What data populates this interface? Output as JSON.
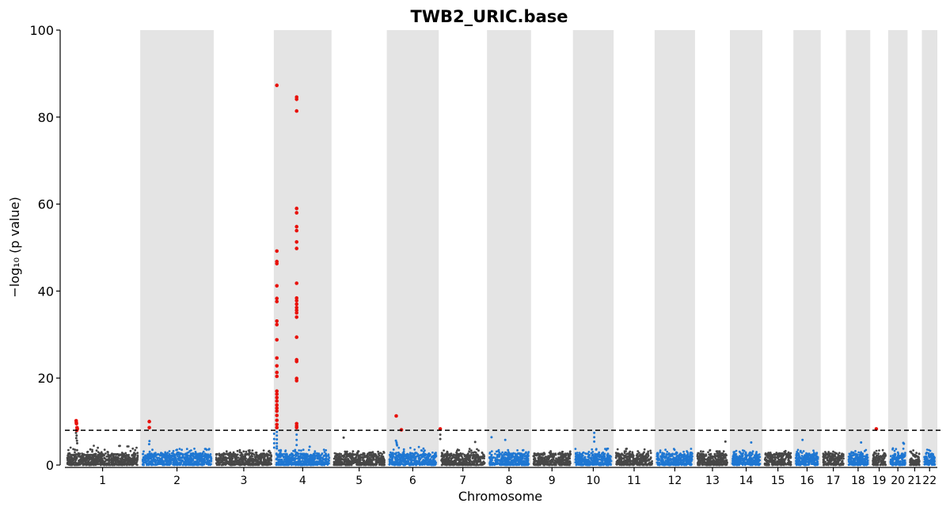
{
  "chart_data": {
    "type": "scatter",
    "title": "TWB2_URIC.base",
    "xlabel": "Chromosome",
    "ylabel": "−log₁₀ (p value)",
    "ylim": [
      0,
      100
    ],
    "yticks": [
      0,
      20,
      40,
      60,
      80,
      100
    ],
    "threshold": 8,
    "grid": false,
    "background_bands": "alternating grey bands on even chromosomes",
    "colors": {
      "odd_chromosome": "#474747",
      "even_chromosome": "#1f77d2",
      "significant": "#e8120c",
      "band": "#e4e4e4",
      "threshold_line": "#000000"
    },
    "chromosomes": [
      {
        "label": "1",
        "start": 0,
        "end": 248,
        "max": 4.5
      },
      {
        "label": "2",
        "start": 248,
        "end": 490,
        "max": 3.8
      },
      {
        "label": "3",
        "start": 490,
        "end": 688,
        "max": 3.5
      },
      {
        "label": "4",
        "start": 688,
        "end": 878,
        "max": 3.6
      },
      {
        "label": "5",
        "start": 878,
        "end": 1060,
        "max": 3.2
      },
      {
        "label": "6",
        "start": 1060,
        "end": 1231,
        "max": 4.2
      },
      {
        "label": "7",
        "start": 1231,
        "end": 1390,
        "max": 3.8
      },
      {
        "label": "8",
        "start": 1390,
        "end": 1535,
        "max": 3.6
      },
      {
        "label": "9",
        "start": 1535,
        "end": 1673,
        "max": 3.3
      },
      {
        "label": "10",
        "start": 1673,
        "end": 1807,
        "max": 3.8
      },
      {
        "label": "11",
        "start": 1807,
        "end": 1942,
        "max": 3.8
      },
      {
        "label": "12",
        "start": 1942,
        "end": 2075,
        "max": 3.8
      },
      {
        "label": "13",
        "start": 2075,
        "end": 2190,
        "max": 3.6
      },
      {
        "label": "14",
        "start": 2190,
        "end": 2297,
        "max": 3.6
      },
      {
        "label": "15",
        "start": 2297,
        "end": 2399,
        "max": 3.5
      },
      {
        "label": "16",
        "start": 2399,
        "end": 2489,
        "max": 3.5
      },
      {
        "label": "17",
        "start": 2489,
        "end": 2572,
        "max": 3.6
      },
      {
        "label": "18",
        "start": 2572,
        "end": 2652,
        "max": 3.5
      },
      {
        "label": "19",
        "start": 2652,
        "end": 2711,
        "max": 3.6
      },
      {
        "label": "20",
        "start": 2711,
        "end": 2775,
        "max": 4.0
      },
      {
        "label": "21",
        "start": 2775,
        "end": 2822,
        "max": 3.6
      },
      {
        "label": "22",
        "start": 2822,
        "end": 2873,
        "max": 3.6
      }
    ],
    "notable_points": [
      {
        "chr": "1",
        "pos": 37,
        "p": 10.2,
        "sig": true
      },
      {
        "chr": "1",
        "pos": 37.5,
        "p": 9.8,
        "sig": true
      },
      {
        "chr": "1",
        "pos": 38,
        "p": 9.5,
        "sig": true
      },
      {
        "chr": "1",
        "pos": 40,
        "p": 8.6,
        "sig": true
      },
      {
        "chr": "1",
        "pos": 41,
        "p": 8.3,
        "sig": true
      },
      {
        "chr": "1",
        "pos": 39,
        "p": 8.0,
        "sig": true
      },
      {
        "chr": "1",
        "pos": 36.5,
        "p": 7.4,
        "sig": false
      },
      {
        "chr": "1",
        "pos": 38.5,
        "p": 6.8,
        "sig": false
      },
      {
        "chr": "1",
        "pos": 37.2,
        "p": 6.2,
        "sig": false
      },
      {
        "chr": "1",
        "pos": 39.5,
        "p": 5.6,
        "sig": false
      },
      {
        "chr": "1",
        "pos": 40.5,
        "p": 5.0,
        "sig": false
      },
      {
        "chr": "2",
        "pos": 30,
        "p": 10.0,
        "sig": true
      },
      {
        "chr": "2",
        "pos": 30,
        "p": 8.6,
        "sig": true
      },
      {
        "chr": "2",
        "pos": 30.5,
        "p": 5.5,
        "sig": false
      },
      {
        "chr": "2",
        "pos": 29.5,
        "p": 4.8,
        "sig": false
      },
      {
        "chr": "4",
        "pos": 1,
        "p": 7.2,
        "sig": false
      },
      {
        "chr": "4",
        "pos": 1,
        "p": 6.0,
        "sig": false
      },
      {
        "chr": "4",
        "pos": 1,
        "p": 5.0,
        "sig": false
      },
      {
        "chr": "4",
        "pos": 1,
        "p": 4.0,
        "sig": false
      },
      {
        "chr": "4",
        "pos": 10,
        "p": 87.3,
        "sig": true
      },
      {
        "chr": "4",
        "pos": 10,
        "p": 49.2,
        "sig": true
      },
      {
        "chr": "4",
        "pos": 10,
        "p": 46.8,
        "sig": true
      },
      {
        "chr": "4",
        "pos": 10,
        "p": 46.3,
        "sig": true
      },
      {
        "chr": "4",
        "pos": 10,
        "p": 41.2,
        "sig": true
      },
      {
        "chr": "4",
        "pos": 10,
        "p": 38.3,
        "sig": true
      },
      {
        "chr": "4",
        "pos": 10,
        "p": 37.6,
        "sig": true
      },
      {
        "chr": "4",
        "pos": 10,
        "p": 33.1,
        "sig": true
      },
      {
        "chr": "4",
        "pos": 10,
        "p": 32.3,
        "sig": true
      },
      {
        "chr": "4",
        "pos": 10,
        "p": 28.8,
        "sig": true
      },
      {
        "chr": "4",
        "pos": 10,
        "p": 24.6,
        "sig": true
      },
      {
        "chr": "4",
        "pos": 10,
        "p": 22.8,
        "sig": true
      },
      {
        "chr": "4",
        "pos": 10,
        "p": 21.3,
        "sig": true
      },
      {
        "chr": "4",
        "pos": 10,
        "p": 20.4,
        "sig": true
      },
      {
        "chr": "4",
        "pos": 10,
        "p": 17.0,
        "sig": true
      },
      {
        "chr": "4",
        "pos": 10,
        "p": 16.3,
        "sig": true
      },
      {
        "chr": "4",
        "pos": 10,
        "p": 15.5,
        "sig": true
      },
      {
        "chr": "4",
        "pos": 10,
        "p": 14.7,
        "sig": true
      },
      {
        "chr": "4",
        "pos": 10,
        "p": 13.8,
        "sig": true
      },
      {
        "chr": "4",
        "pos": 10,
        "p": 13.1,
        "sig": true
      },
      {
        "chr": "4",
        "pos": 10,
        "p": 12.4,
        "sig": true
      },
      {
        "chr": "4",
        "pos": 10,
        "p": 11.4,
        "sig": true
      },
      {
        "chr": "4",
        "pos": 10,
        "p": 10.3,
        "sig": true
      },
      {
        "chr": "4",
        "pos": 10,
        "p": 9.3,
        "sig": true
      },
      {
        "chr": "4",
        "pos": 10,
        "p": 8.6,
        "sig": true
      },
      {
        "chr": "4",
        "pos": 10,
        "p": 7.6,
        "sig": false
      },
      {
        "chr": "4",
        "pos": 10,
        "p": 6.8,
        "sig": false
      },
      {
        "chr": "4",
        "pos": 10,
        "p": 5.9,
        "sig": false
      },
      {
        "chr": "4",
        "pos": 10,
        "p": 5.0,
        "sig": false
      },
      {
        "chr": "4",
        "pos": 10,
        "p": 4.3,
        "sig": false
      },
      {
        "chr": "4",
        "pos": 10,
        "p": 3.8,
        "sig": false
      },
      {
        "chr": "4",
        "pos": 75,
        "p": 84.6,
        "sig": true
      },
      {
        "chr": "4",
        "pos": 75,
        "p": 84.1,
        "sig": true
      },
      {
        "chr": "4",
        "pos": 75,
        "p": 81.4,
        "sig": true
      },
      {
        "chr": "4",
        "pos": 75,
        "p": 59.0,
        "sig": true
      },
      {
        "chr": "4",
        "pos": 75,
        "p": 58.0,
        "sig": true
      },
      {
        "chr": "4",
        "pos": 75,
        "p": 54.8,
        "sig": true
      },
      {
        "chr": "4",
        "pos": 75,
        "p": 53.9,
        "sig": true
      },
      {
        "chr": "4",
        "pos": 75,
        "p": 51.3,
        "sig": true
      },
      {
        "chr": "4",
        "pos": 75,
        "p": 49.8,
        "sig": true
      },
      {
        "chr": "4",
        "pos": 75,
        "p": 41.8,
        "sig": true
      },
      {
        "chr": "4",
        "pos": 75,
        "p": 38.4,
        "sig": true
      },
      {
        "chr": "4",
        "pos": 75,
        "p": 37.8,
        "sig": true
      },
      {
        "chr": "4",
        "pos": 75,
        "p": 37.0,
        "sig": true
      },
      {
        "chr": "4",
        "pos": 75,
        "p": 36.2,
        "sig": true
      },
      {
        "chr": "4",
        "pos": 75,
        "p": 35.6,
        "sig": true
      },
      {
        "chr": "4",
        "pos": 75,
        "p": 35.0,
        "sig": true
      },
      {
        "chr": "4",
        "pos": 75,
        "p": 34.0,
        "sig": true
      },
      {
        "chr": "4",
        "pos": 75,
        "p": 29.4,
        "sig": true
      },
      {
        "chr": "4",
        "pos": 75,
        "p": 24.2,
        "sig": true
      },
      {
        "chr": "4",
        "pos": 75,
        "p": 23.8,
        "sig": true
      },
      {
        "chr": "4",
        "pos": 75,
        "p": 19.9,
        "sig": true
      },
      {
        "chr": "4",
        "pos": 75,
        "p": 19.4,
        "sig": true
      },
      {
        "chr": "4",
        "pos": 75,
        "p": 9.5,
        "sig": true
      },
      {
        "chr": "4",
        "pos": 75,
        "p": 9.0,
        "sig": true
      },
      {
        "chr": "4",
        "pos": 75,
        "p": 8.6,
        "sig": true
      },
      {
        "chr": "4",
        "pos": 75,
        "p": 7.0,
        "sig": false
      },
      {
        "chr": "4",
        "pos": 75,
        "p": 5.8,
        "sig": false
      },
      {
        "chr": "4",
        "pos": 75,
        "p": 4.6,
        "sig": false
      },
      {
        "chr": "4",
        "pos": 118,
        "p": 4.2,
        "sig": false
      },
      {
        "chr": "5",
        "pos": 40,
        "p": 6.3,
        "sig": false
      },
      {
        "chr": "6",
        "pos": 31,
        "p": 11.3,
        "sig": true
      },
      {
        "chr": "6",
        "pos": 48,
        "p": 8.1,
        "sig": true
      },
      {
        "chr": "6",
        "pos": 30,
        "p": 5.6,
        "sig": false
      },
      {
        "chr": "6",
        "pos": 32,
        "p": 5.2,
        "sig": false
      },
      {
        "chr": "6",
        "pos": 33,
        "p": 4.8,
        "sig": false
      },
      {
        "chr": "6",
        "pos": 34,
        "p": 4.5,
        "sig": false
      },
      {
        "chr": "7",
        "pos": 5,
        "p": 8.3,
        "sig": true
      },
      {
        "chr": "7",
        "pos": 5,
        "p": 7.0,
        "sig": false
      },
      {
        "chr": "7",
        "pos": 5,
        "p": 6.0,
        "sig": false
      },
      {
        "chr": "7",
        "pos": 120,
        "p": 5.3,
        "sig": false
      },
      {
        "chr": "8",
        "pos": 15,
        "p": 6.4,
        "sig": false
      },
      {
        "chr": "8",
        "pos": 60,
        "p": 5.8,
        "sig": false
      },
      {
        "chr": "10",
        "pos": 70,
        "p": 7.4,
        "sig": false
      },
      {
        "chr": "10",
        "pos": 70,
        "p": 6.4,
        "sig": false
      },
      {
        "chr": "10",
        "pos": 70,
        "p": 5.4,
        "sig": false
      },
      {
        "chr": "13",
        "pos": 100,
        "p": 5.4,
        "sig": false
      },
      {
        "chr": "14",
        "pos": 70,
        "p": 5.2,
        "sig": false
      },
      {
        "chr": "16",
        "pos": 30,
        "p": 5.8,
        "sig": false
      },
      {
        "chr": "18",
        "pos": 50,
        "p": 5.2,
        "sig": false
      },
      {
        "chr": "19",
        "pos": 20,
        "p": 8.3,
        "sig": true
      },
      {
        "chr": "20",
        "pos": 50,
        "p": 5.1,
        "sig": false
      },
      {
        "chr": "20",
        "pos": 52,
        "p": 4.9,
        "sig": false
      }
    ]
  }
}
